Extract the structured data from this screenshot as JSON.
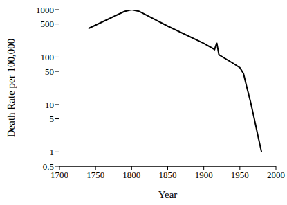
{
  "chart_data": {
    "type": "line",
    "xlabel": "Year",
    "ylabel": "Death Rate per 100,000",
    "x": [
      1740,
      1790,
      1800,
      1810,
      1850,
      1900,
      1915,
      1918,
      1921,
      1940,
      1950,
      1955,
      1960,
      1965,
      1970,
      1975,
      1980
    ],
    "values": [
      400,
      920,
      1000,
      930,
      450,
      195,
      145,
      200,
      112,
      75,
      60,
      45,
      22,
      11,
      5,
      2.2,
      1
    ],
    "color": "#000000",
    "xlim": [
      1700,
      2000
    ],
    "ylim": [
      0.5,
      1000
    ],
    "xticks": [
      1700,
      1750,
      1800,
      1850,
      1900,
      1950,
      2000
    ],
    "yticks": [
      0.5,
      1,
      5,
      10,
      50,
      100,
      500,
      1000
    ],
    "log": "y",
    "grid": false
  }
}
